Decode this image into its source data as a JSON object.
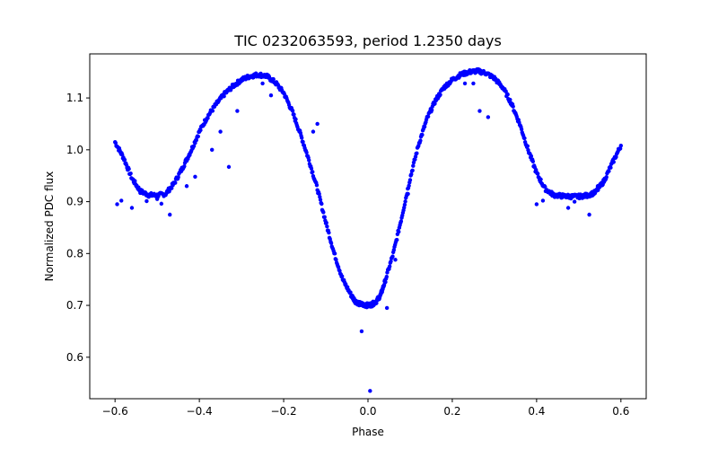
{
  "chart_data": {
    "type": "scatter",
    "title": "TIC 0232063593, period 1.2350 days",
    "xlabel": "Phase",
    "ylabel": "Normalized PDC flux",
    "xlim": [
      -0.66,
      0.66
    ],
    "ylim": [
      0.52,
      1.185
    ],
    "xticks": [
      -0.6,
      -0.4,
      -0.2,
      0.0,
      0.2,
      0.4,
      0.6
    ],
    "xtick_labels": [
      "−0.6",
      "−0.4",
      "−0.2",
      "0.0",
      "0.2",
      "0.4",
      "0.6"
    ],
    "yticks": [
      0.6,
      0.7,
      0.8,
      0.9,
      1.0,
      1.1
    ],
    "ytick_labels": [
      "0.6",
      "0.7",
      "0.8",
      "0.9",
      "1.0",
      "1.1"
    ],
    "grid": false,
    "marker_color": "#0000ff",
    "series": [
      {
        "curve": {
          "x": [
            -0.6,
            -0.58,
            -0.56,
            -0.54,
            -0.52,
            -0.5,
            -0.48,
            -0.46,
            -0.44,
            -0.42,
            -0.4,
            -0.38,
            -0.36,
            -0.34,
            -0.32,
            -0.3,
            -0.28,
            -0.26,
            -0.24,
            -0.22,
            -0.2,
            -0.18,
            -0.16,
            -0.14,
            -0.12,
            -0.1,
            -0.08,
            -0.06,
            -0.04,
            -0.03,
            -0.02,
            -0.01,
            0.0,
            0.01,
            0.02,
            0.03,
            0.04,
            0.06,
            0.08,
            0.1,
            0.12,
            0.14,
            0.16,
            0.18,
            0.2,
            0.22,
            0.24,
            0.26,
            0.28,
            0.3,
            0.32,
            0.34,
            0.36,
            0.38,
            0.4,
            0.42,
            0.44,
            0.46,
            0.48,
            0.5,
            0.52,
            0.54,
            0.56,
            0.58,
            0.6
          ],
          "y": [
            1.015,
            0.985,
            0.945,
            0.92,
            0.913,
            0.912,
            0.915,
            0.935,
            0.965,
            0.998,
            1.035,
            1.065,
            1.088,
            1.108,
            1.123,
            1.135,
            1.142,
            1.145,
            1.142,
            1.13,
            1.11,
            1.075,
            1.03,
            0.98,
            0.925,
            0.86,
            0.8,
            0.75,
            0.72,
            0.708,
            0.703,
            0.701,
            0.7,
            0.702,
            0.708,
            0.72,
            0.745,
            0.8,
            0.87,
            0.945,
            1.01,
            1.06,
            1.095,
            1.12,
            1.135,
            1.145,
            1.15,
            1.152,
            1.148,
            1.138,
            1.12,
            1.09,
            1.05,
            1.0,
            0.955,
            0.925,
            0.913,
            0.911,
            0.91,
            0.91,
            0.912,
            0.918,
            0.94,
            0.975,
            1.008
          ]
        },
        "outliers": {
          "x": [
            -0.595,
            -0.585,
            -0.56,
            -0.525,
            -0.5,
            -0.49,
            -0.47,
            -0.43,
            -0.41,
            -0.37,
            -0.35,
            -0.33,
            -0.31,
            -0.25,
            -0.23,
            -0.13,
            -0.12,
            -0.015,
            0.005,
            0.045,
            0.065,
            0.095,
            0.23,
            0.25,
            0.265,
            0.285,
            0.4,
            0.415,
            0.475,
            0.49,
            0.525,
            0.545
          ],
          "y": [
            0.895,
            0.902,
            0.888,
            0.901,
            0.905,
            0.896,
            0.875,
            0.93,
            0.948,
            1.0,
            1.035,
            0.967,
            1.075,
            1.128,
            1.105,
            1.035,
            1.05,
            0.65,
            0.535,
            0.695,
            0.788,
            0.915,
            1.128,
            1.128,
            1.075,
            1.063,
            0.895,
            0.902,
            0.888,
            0.9,
            0.875,
            0.93
          ]
        }
      }
    ]
  }
}
